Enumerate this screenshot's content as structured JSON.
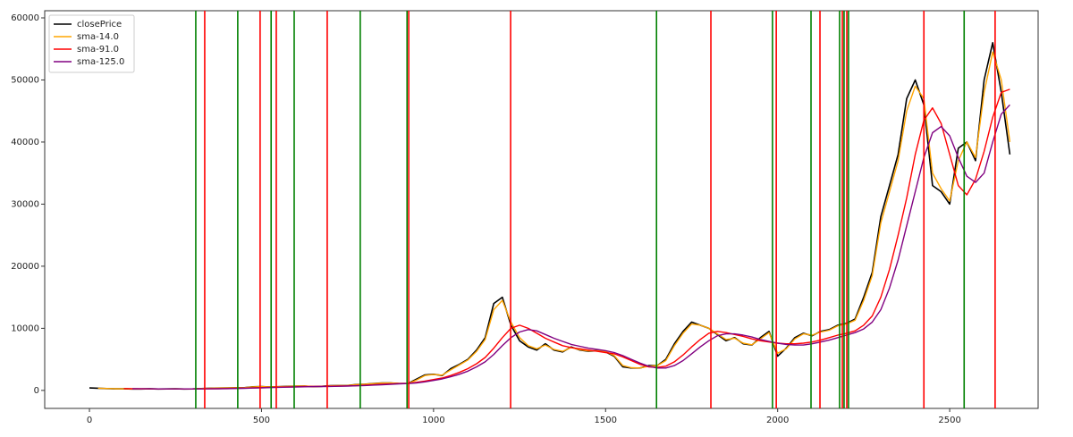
{
  "chart_data": {
    "type": "line",
    "x": [
      0,
      25,
      50,
      75,
      100,
      125,
      150,
      175,
      200,
      225,
      250,
      275,
      300,
      325,
      350,
      375,
      400,
      425,
      450,
      475,
      500,
      525,
      550,
      575,
      600,
      625,
      650,
      675,
      700,
      725,
      750,
      775,
      800,
      825,
      850,
      875,
      900,
      925,
      950,
      975,
      1000,
      1025,
      1050,
      1075,
      1100,
      1125,
      1150,
      1175,
      1200,
      1225,
      1250,
      1275,
      1300,
      1325,
      1350,
      1375,
      1400,
      1425,
      1450,
      1475,
      1500,
      1525,
      1550,
      1575,
      1600,
      1625,
      1650,
      1675,
      1700,
      1725,
      1750,
      1775,
      1800,
      1825,
      1850,
      1875,
      1900,
      1925,
      1950,
      1975,
      2000,
      2025,
      2050,
      2075,
      2100,
      2125,
      2150,
      2175,
      2200,
      2225,
      2250,
      2275,
      2300,
      2325,
      2350,
      2375,
      2400,
      2425,
      2450,
      2475,
      2500,
      2525,
      2550,
      2575,
      2600,
      2625,
      2650,
      2675
    ],
    "series": [
      {
        "name": "closePrice",
        "color": "#000000",
        "values": [
          400,
          350,
          300,
          250,
          250,
          230,
          220,
          250,
          230,
          240,
          250,
          230,
          240,
          300,
          350,
          380,
          410,
          420,
          440,
          580,
          620,
          550,
          600,
          650,
          700,
          700,
          600,
          650,
          750,
          780,
          800,
          950,
          1000,
          1100,
          1200,
          1200,
          1100,
          1100,
          1800,
          2500,
          2600,
          2400,
          3500,
          4200,
          5000,
          6500,
          8500,
          14000,
          15000,
          10500,
          8000,
          7000,
          6500,
          7500,
          6500,
          6200,
          7000,
          6500,
          6300,
          6400,
          6200,
          5500,
          3800,
          3600,
          3600,
          4000,
          4000,
          5000,
          7500,
          9500,
          11000,
          10500,
          10000,
          9000,
          8000,
          8500,
          7500,
          7300,
          8500,
          9500,
          5500,
          6800,
          8500,
          9200,
          8800,
          9500,
          9800,
          10500,
          10800,
          11500,
          15000,
          19000,
          28000,
          33000,
          38000,
          47000,
          50000,
          46000,
          33000,
          32000,
          30000,
          39000,
          40000,
          37000,
          50000,
          56000,
          48000,
          38000
        ]
      },
      {
        "name": "sma-14.0",
        "color": "#ffa500",
        "values": [
          null,
          360,
          310,
          260,
          250,
          235,
          225,
          240,
          235,
          240,
          245,
          235,
          240,
          290,
          340,
          375,
          400,
          415,
          435,
          560,
          610,
          560,
          595,
          645,
          690,
          700,
          620,
          645,
          740,
          775,
          800,
          930,
          990,
          1080,
          1180,
          1190,
          1120,
          1100,
          1650,
          2400,
          2550,
          2450,
          3300,
          4100,
          4900,
          6300,
          8200,
          13000,
          14500,
          11000,
          8500,
          7200,
          6700,
          7300,
          6600,
          6300,
          6900,
          6550,
          6350,
          6400,
          6250,
          5600,
          4000,
          3650,
          3600,
          3900,
          4000,
          4800,
          7200,
          9200,
          10700,
          10500,
          10000,
          9100,
          8200,
          8400,
          7600,
          7350,
          8300,
          9300,
          6000,
          6700,
          8300,
          9100,
          8900,
          9400,
          9700,
          10400,
          10700,
          11300,
          14500,
          18500,
          27000,
          32000,
          37000,
          45000,
          49000,
          47000,
          35000,
          32500,
          30500,
          37000,
          40000,
          37500,
          48000,
          54500,
          50000,
          40000
        ]
      },
      {
        "name": "sma-91.0",
        "color": "#ff0000",
        "values": [
          null,
          null,
          null,
          null,
          300,
          280,
          260,
          245,
          240,
          238,
          238,
          238,
          240,
          250,
          265,
          285,
          310,
          340,
          370,
          410,
          450,
          490,
          530,
          560,
          590,
          620,
          640,
          650,
          670,
          700,
          730,
          770,
          830,
          900,
          980,
          1050,
          1100,
          1150,
          1300,
          1500,
          1750,
          2000,
          2400,
          2900,
          3500,
          4300,
          5300,
          6800,
          8500,
          10000,
          10500,
          10000,
          9200,
          8400,
          7800,
          7200,
          6900,
          6700,
          6500,
          6300,
          6100,
          5900,
          5400,
          4800,
          4200,
          3800,
          3700,
          3900,
          4600,
          5700,
          7000,
          8200,
          9200,
          9500,
          9300,
          9000,
          8700,
          8300,
          8000,
          7800,
          7600,
          7500,
          7500,
          7600,
          7800,
          8100,
          8500,
          8900,
          9200,
          9600,
          10500,
          12000,
          15000,
          19500,
          25000,
          31000,
          38000,
          43500,
          45500,
          43000,
          38000,
          33000,
          31500,
          34000,
          38500,
          44000,
          48000,
          48500
        ]
      },
      {
        "name": "sma-125.0",
        "color": "#800080",
        "values": [
          null,
          null,
          null,
          null,
          null,
          260,
          250,
          245,
          240,
          238,
          238,
          237,
          238,
          242,
          250,
          265,
          285,
          310,
          340,
          375,
          410,
          450,
          490,
          520,
          550,
          580,
          605,
          625,
          645,
          670,
          700,
          740,
          790,
          850,
          920,
          990,
          1050,
          1100,
          1200,
          1380,
          1600,
          1850,
          2200,
          2600,
          3100,
          3800,
          4600,
          5800,
          7200,
          8500,
          9400,
          9800,
          9600,
          9000,
          8400,
          7900,
          7400,
          7100,
          6800,
          6600,
          6400,
          6100,
          5600,
          5000,
          4400,
          3900,
          3600,
          3600,
          4000,
          4800,
          5900,
          7000,
          8000,
          8800,
          9100,
          9100,
          8900,
          8600,
          8200,
          7900,
          7600,
          7400,
          7300,
          7300,
          7500,
          7800,
          8100,
          8500,
          8900,
          9300,
          9900,
          11000,
          13000,
          16500,
          21000,
          26500,
          32000,
          37500,
          41500,
          42500,
          41000,
          37500,
          34500,
          33500,
          35000,
          40000,
          44500,
          46000
        ]
      }
    ],
    "vlines": [
      {
        "color": "#008000",
        "x": [
          309,
          431,
          528,
          595,
          787,
          923,
          1648,
          1985,
          2097,
          2180,
          2193,
          2206,
          2542
        ]
      },
      {
        "color": "#ff0000",
        "x": [
          335,
          496,
          543,
          691,
          928,
          1224,
          1806,
          1996,
          2123,
          2188,
          2201,
          2425,
          2632
        ]
      }
    ],
    "xlim": [
      -130,
      2757
    ],
    "ylim": [
      -2900,
      61150
    ],
    "xticks": [
      0,
      500,
      1000,
      1500,
      2000,
      2500
    ],
    "yticks": [
      0,
      10000,
      20000,
      30000,
      40000,
      50000,
      60000
    ],
    "legend": "upper left"
  }
}
